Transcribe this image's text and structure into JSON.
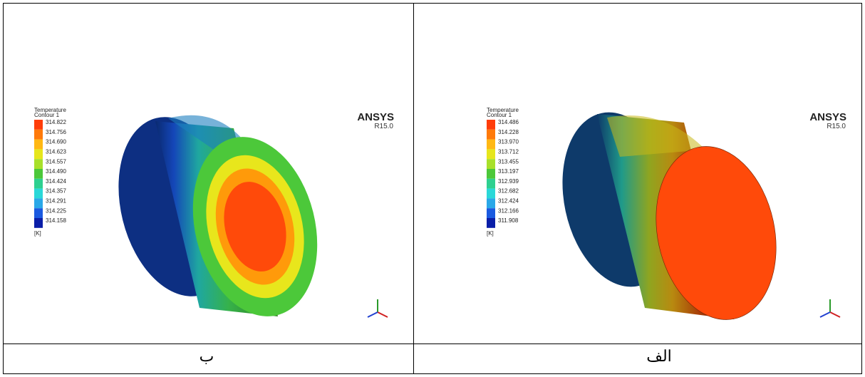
{
  "panels": [
    {
      "legend_title": "Temperature",
      "legend_subtitle": "Contour 1",
      "legend_values": [
        "314.822",
        "314.756",
        "314.690",
        "314.623",
        "314.557",
        "314.490",
        "314.424",
        "314.357",
        "314.291",
        "314.225",
        "314.158"
      ],
      "unit": "[K]",
      "brand": "ANSYS",
      "version": "R15.0",
      "caption": "ب"
    },
    {
      "legend_title": "Temperature",
      "legend_subtitle": "Contour 1",
      "legend_values": [
        "314.486",
        "314.228",
        "313.970",
        "313.712",
        "313.455",
        "313.197",
        "312.939",
        "312.682",
        "312.424",
        "312.166",
        "311.908"
      ],
      "unit": "[K]",
      "brand": "ANSYS",
      "version": "R15.0",
      "caption": "الف"
    }
  ]
}
